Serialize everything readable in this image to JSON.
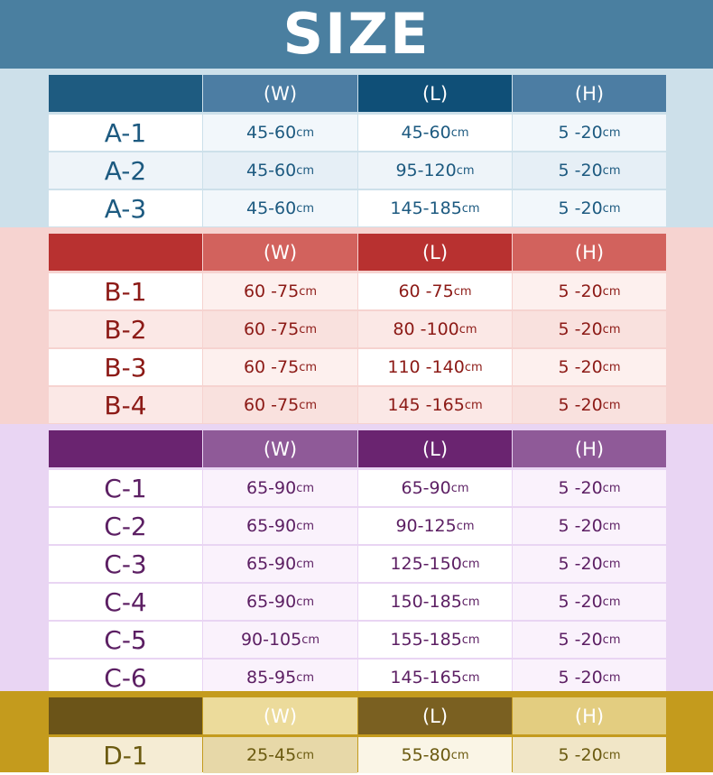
{
  "title": "SIZE",
  "unit": "cm",
  "headers": {
    "w": "(W)",
    "l": "(L)",
    "h": "(H)"
  },
  "sections": {
    "a": {
      "colors": {
        "band": "#cde0ea",
        "header_dark": "#1e5b80",
        "header_light": "#4c7da3",
        "text": "#1d5a80"
      },
      "rows": [
        {
          "label": "A-1",
          "w": "45-60",
          "l": "45-60",
          "h": "5 -20"
        },
        {
          "label": "A-2",
          "w": "45-60",
          "l": "95-120",
          "h": "5 -20"
        },
        {
          "label": "A-3",
          "w": "45-60",
          "l": "145-185",
          "h": "5 -20"
        }
      ]
    },
    "b": {
      "colors": {
        "band": "#f6d3d0",
        "header_dark": "#b83130",
        "header_light": "#d2625d",
        "text": "#8c1a16"
      },
      "rows": [
        {
          "label": "B-1",
          "w": "60 -75",
          "l": "60 -75",
          "h": "5 -20"
        },
        {
          "label": "B-2",
          "w": "60 -75",
          "l": "80 -100",
          "h": "5 -20"
        },
        {
          "label": "B-3",
          "w": "60 -75",
          "l": "110 -140",
          "h": "5 -20"
        },
        {
          "label": "B-4",
          "w": "60 -75",
          "l": "145 -165",
          "h": "5 -20"
        }
      ]
    },
    "c": {
      "colors": {
        "band": "#e9d5f3",
        "header_dark": "#6a2470",
        "header_light": "#8f5a98",
        "text": "#5c1f63"
      },
      "rows": [
        {
          "label": "C-1",
          "w": "65-90",
          "l": "65-90",
          "h": "5 -20"
        },
        {
          "label": "C-2",
          "w": "65-90",
          "l": "90-125",
          "h": "5 -20"
        },
        {
          "label": "C-3",
          "w": "65-90",
          "l": "125-150",
          "h": "5 -20"
        },
        {
          "label": "C-4",
          "w": "65-90",
          "l": "150-185",
          "h": "5 -20"
        },
        {
          "label": "C-5",
          "w": "90-105",
          "l": "155-185",
          "h": "5 -20"
        },
        {
          "label": "C-6",
          "w": "85-95",
          "l": "145-165",
          "h": "5 -20"
        }
      ]
    },
    "d": {
      "colors": {
        "band": "#c49b1d",
        "header_dark": "#6b5418",
        "header_light": "#ecdb9b",
        "text": "#6b5a10"
      },
      "rows": [
        {
          "label": "D-1",
          "w": "25-45",
          "l": "55-80",
          "h": "5 -20"
        }
      ]
    }
  }
}
